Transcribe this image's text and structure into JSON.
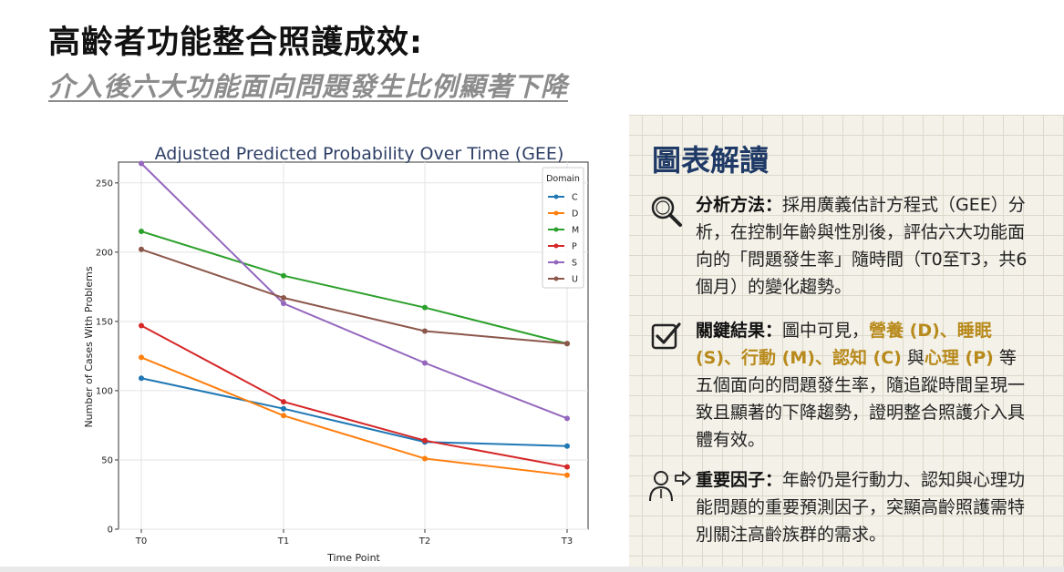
{
  "header": {
    "title": "高齡者功能整合照護成效:",
    "subtitle": "介入後六大功能面向問題發生比例顯著下降"
  },
  "chart_data": {
    "type": "line",
    "title": "Adjusted Predicted Probability Over Time (GEE)",
    "xlabel": "Time Point",
    "ylabel": "Number of Cases With Problems",
    "categories": [
      "T0",
      "T1",
      "T2",
      "T3"
    ],
    "ylim": [
      0,
      265
    ],
    "yticks": [
      0,
      50,
      100,
      150,
      200,
      250
    ],
    "grid": true,
    "legend_title": "Domain",
    "legend_position": "top-right",
    "series": [
      {
        "name": "C",
        "color": "#1f77b4",
        "values": [
          109,
          87,
          63,
          60
        ]
      },
      {
        "name": "D",
        "color": "#ff7f0e",
        "values": [
          124,
          82,
          51,
          39
        ]
      },
      {
        "name": "M",
        "color": "#2ca02c",
        "values": [
          215,
          183,
          160,
          134
        ]
      },
      {
        "name": "P",
        "color": "#d62728",
        "values": [
          147,
          92,
          64,
          45
        ]
      },
      {
        "name": "S",
        "color": "#9467bd",
        "values": [
          264,
          163,
          120,
          80
        ]
      },
      {
        "name": "U",
        "color": "#8c564b",
        "values": [
          202,
          167,
          143,
          134
        ]
      }
    ]
  },
  "interpretation": {
    "title": "圖表解讀",
    "method": {
      "label": "分析方法：",
      "text": "採用廣義估計方程式（GEE）分析，在控制年齡與性別後，評估六大功能面向的「問題發生率」隨時間（T0至T3，共6個月）的變化趨勢。"
    },
    "result": {
      "label": "關鍵結果：",
      "prefix": "圖中可見，",
      "highlight_1": "營養 (D)、睡眠 (S)、行動 (M)、認知 (C)",
      "connector": " 與",
      "highlight_2": "心理 (P)",
      "suffix": " 等五個面向的問題發生率，隨追蹤時間呈現一致且顯著的下降趨勢，證明整合照護介入具體有效。"
    },
    "factor": {
      "label": "重要因子：",
      "text": "年齡仍是行動力、認知與心理功能問題的重要預測因子，突顯高齡照護需特別關注高齡族群的需求。"
    },
    "highlight_color": "#b88a1c",
    "title_color": "#1f3a66"
  }
}
